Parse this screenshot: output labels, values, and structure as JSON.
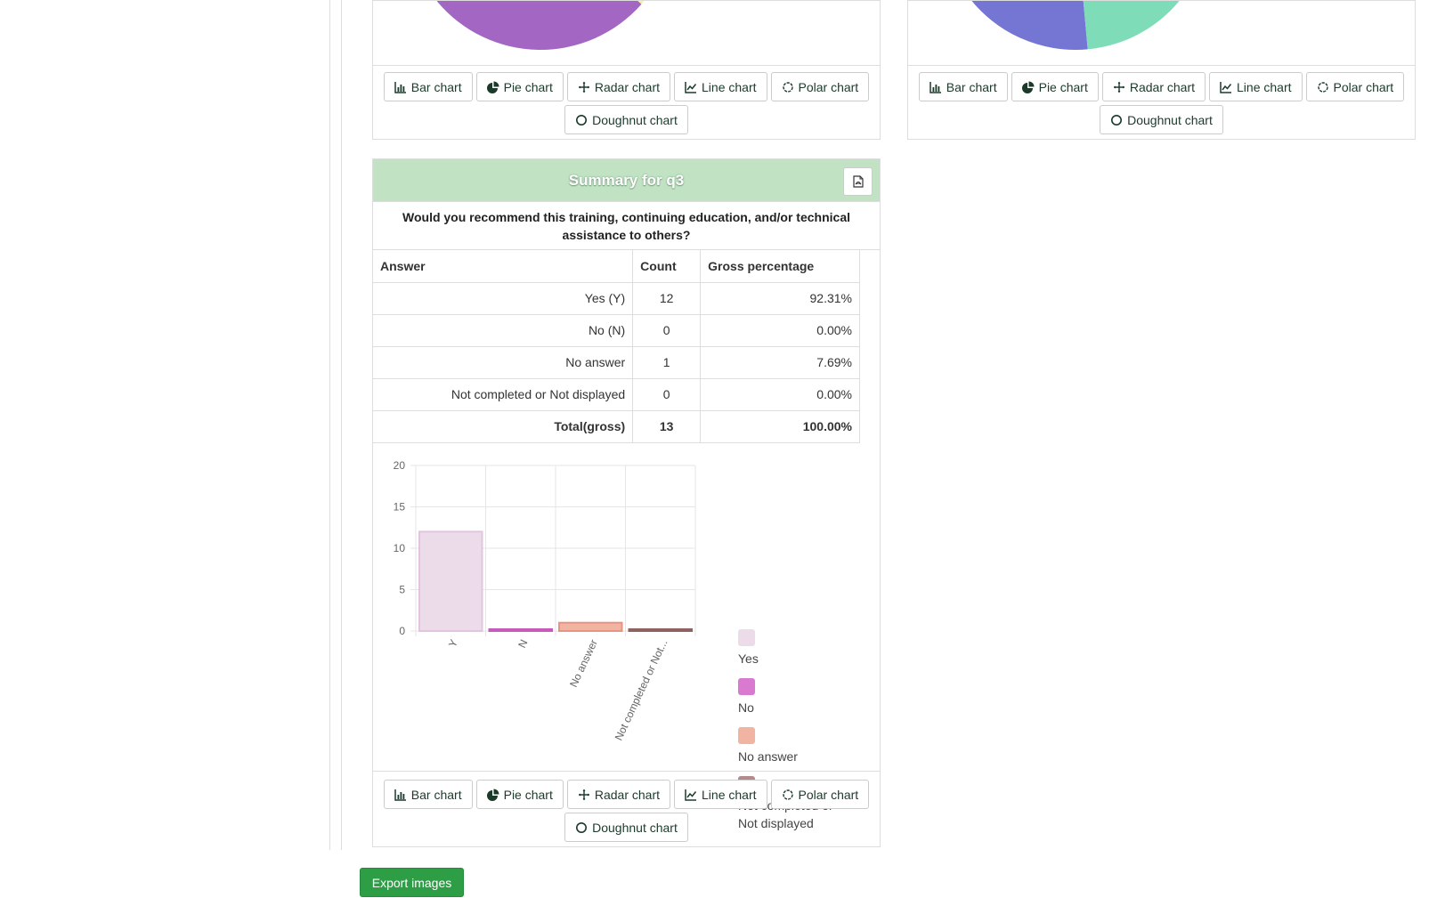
{
  "chart_buttons": [
    {
      "label": "Bar chart",
      "icon": "bar-chart-icon"
    },
    {
      "label": "Pie chart",
      "icon": "pie-chart-icon"
    },
    {
      "label": "Radar chart",
      "icon": "radar-chart-icon"
    },
    {
      "label": "Line chart",
      "icon": "line-chart-icon"
    },
    {
      "label": "Polar chart",
      "icon": "polar-chart-icon"
    },
    {
      "label": "Doughnut chart",
      "icon": "doughnut-chart-icon"
    }
  ],
  "top_left_pie": {
    "colors": [
      "#a366c3",
      "#f7f59a"
    ]
  },
  "top_right_pie": {
    "colors": [
      "#7575d4",
      "#7fdcb8"
    ]
  },
  "summary": {
    "title": "Summary for q3",
    "question": "Would you recommend this training, continuing education, and/or technical assistance to others?",
    "columns": {
      "answer": "Answer",
      "count": "Count",
      "percentage": "Gross percentage"
    },
    "rows": [
      {
        "answer": "Yes (Y)",
        "count": "12",
        "percentage": "92.31%"
      },
      {
        "answer": "No (N)",
        "count": "0",
        "percentage": "0.00%"
      },
      {
        "answer": "No answer",
        "count": "1",
        "percentage": "7.69%"
      },
      {
        "answer": "Not completed or Not displayed",
        "count": "0",
        "percentage": "0.00%"
      }
    ],
    "total": {
      "answer": "Total(gross)",
      "count": "13",
      "percentage": "100.00%"
    }
  },
  "chart_data": {
    "type": "bar",
    "categories": [
      "Y",
      "N",
      "No answer",
      "Not completed or Not..."
    ],
    "values": [
      12,
      0,
      1,
      0
    ],
    "ylim": [
      0,
      20
    ],
    "yticks": [
      0,
      5,
      10,
      15,
      20
    ],
    "grid": true,
    "legend_position": "right",
    "colors": [
      "#ecdcea",
      "#d97ad0",
      "#f1b3a2",
      "#b38b8b"
    ],
    "border_colors": [
      "#e3c4e0",
      "#c75bbd",
      "#e99481",
      "#8f6262"
    ],
    "legend": [
      "Yes",
      "No",
      "No answer",
      "Not completed or Not displayed"
    ]
  },
  "export_label": "Export images"
}
